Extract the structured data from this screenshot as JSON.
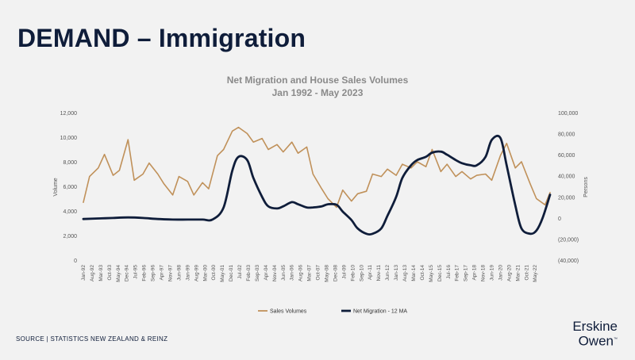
{
  "slide": {
    "title": "DEMAND – Immigration",
    "source": "SOURCE | STATISTICS NEW ZEALAND & REINZ",
    "logo_line1": "Erskine",
    "logo_line2": "Owen",
    "logo_tm": "™"
  },
  "colors": {
    "background": "#f2f2f2",
    "sales": "#c0915a",
    "migration": "#0f1d3a",
    "title": "#0f1d3a",
    "axis_text": "#555555",
    "chart_title": "#8a8a8a"
  },
  "chart_data": {
    "type": "line",
    "title": "Net Migration and House Sales Volumes",
    "subtitle": "Jan 1992 - May 2023",
    "ylabel": "Volume",
    "y2label": "Persons",
    "ylim": [
      0,
      12000
    ],
    "y2lim": [
      -40000,
      100000
    ],
    "yticks": [
      "0",
      "2,000",
      "4,000",
      "6,000",
      "8,000",
      "10,000",
      "12,000"
    ],
    "y2ticks": [
      "(40,000)",
      "(20,000)",
      "0",
      "20,000",
      "40,000",
      "60,000",
      "80,000",
      "100,000"
    ],
    "grid": false,
    "legend_position": "bottom",
    "x_start": "1992-01",
    "x_end": "2023-05",
    "xtick_labels": [
      "Jan-92",
      "Aug-92",
      "Mar-93",
      "Oct-93",
      "May-94",
      "Dec-94",
      "Jul-95",
      "Feb-96",
      "Sep-96",
      "Apr-97",
      "Nov-97",
      "Jun-98",
      "Jan-99",
      "Aug-99",
      "Mar-00",
      "Oct-00",
      "May-01",
      "Dec-01",
      "Jul-02",
      "Feb-03",
      "Sep-03",
      "Apr-04",
      "Nov-04",
      "Jun-05",
      "Jan-06",
      "Aug-06",
      "Mar-07",
      "Oct-07",
      "May-08",
      "Dec-08",
      "Jul-09",
      "Feb-10",
      "Sep-10",
      "Apr-11",
      "Nov-11",
      "Jun-12",
      "Jan-13",
      "Aug-13",
      "Mar-14",
      "Oct-14",
      "May-15",
      "Dec-15",
      "Jul-16",
      "Feb-17",
      "Sep-17",
      "Apr-18",
      "Nov-18",
      "Jun-19",
      "Jan-20",
      "Aug-20",
      "Mar-21",
      "Oct-21",
      "May-22"
    ],
    "series": [
      {
        "name": "Sales Volumes",
        "axis": "left",
        "x": [
          "1992-01",
          "1992-06",
          "1993-01",
          "1993-06",
          "1994-01",
          "1994-06",
          "1995-01",
          "1995-06",
          "1996-01",
          "1996-06",
          "1997-01",
          "1997-06",
          "1998-01",
          "1998-06",
          "1999-01",
          "1999-06",
          "2000-01",
          "2000-06",
          "2001-01",
          "2001-06",
          "2002-01",
          "2002-06",
          "2003-01",
          "2003-06",
          "2004-01",
          "2004-06",
          "2005-01",
          "2005-06",
          "2006-01",
          "2006-06",
          "2007-01",
          "2007-06",
          "2008-01",
          "2008-06",
          "2009-01",
          "2009-06",
          "2010-01",
          "2010-06",
          "2011-01",
          "2011-06",
          "2012-01",
          "2012-06",
          "2013-01",
          "2013-06",
          "2014-01",
          "2014-06",
          "2015-01",
          "2015-06",
          "2016-01",
          "2016-06",
          "2017-01",
          "2017-06",
          "2018-01",
          "2018-06",
          "2019-01",
          "2019-06",
          "2020-01",
          "2020-06",
          "2021-01",
          "2021-06",
          "2022-01",
          "2022-06",
          "2023-01",
          "2023-05"
        ],
        "values": [
          4700,
          6800,
          7500,
          8600,
          6900,
          7300,
          9800,
          6500,
          7000,
          7900,
          7000,
          6200,
          5300,
          6800,
          6400,
          5300,
          6300,
          5800,
          8500,
          9000,
          10500,
          10800,
          10300,
          9600,
          9900,
          9000,
          9400,
          8800,
          9600,
          8700,
          9200,
          7000,
          5800,
          5000,
          4300,
          5700,
          4800,
          5400,
          5600,
          7000,
          6800,
          7400,
          6900,
          7800,
          7500,
          8000,
          7600,
          9000,
          7200,
          7800,
          6800,
          7200,
          6600,
          6900,
          7000,
          6500,
          8500,
          9500,
          7500,
          8000,
          6200,
          5000,
          4500,
          5500
        ]
      },
      {
        "name": "Net Migration - 12 MA",
        "axis": "right",
        "x": [
          "1992-01",
          "1993-01",
          "1994-01",
          "1995-01",
          "1996-01",
          "1997-01",
          "1998-01",
          "1999-01",
          "2000-01",
          "2000-09",
          "2001-06",
          "2002-01",
          "2002-06",
          "2003-01",
          "2003-06",
          "2004-01",
          "2004-06",
          "2005-01",
          "2005-06",
          "2006-01",
          "2006-06",
          "2007-01",
          "2007-06",
          "2008-01",
          "2008-06",
          "2009-01",
          "2009-06",
          "2010-01",
          "2010-06",
          "2011-01",
          "2011-06",
          "2012-01",
          "2012-06",
          "2013-01",
          "2013-06",
          "2014-01",
          "2014-06",
          "2015-01",
          "2015-06",
          "2016-01",
          "2016-06",
          "2017-01",
          "2017-06",
          "2018-01",
          "2018-06",
          "2019-01",
          "2019-06",
          "2020-01",
          "2020-06",
          "2021-01",
          "2021-06",
          "2022-01",
          "2022-06",
          "2022-11",
          "2023-05"
        ],
        "values": [
          -1000,
          -500,
          0,
          500,
          0,
          -1000,
          -1500,
          -1500,
          -1500,
          -1500,
          10000,
          45000,
          58000,
          55000,
          38000,
          20000,
          11000,
          9000,
          11000,
          15000,
          13000,
          10000,
          10000,
          11000,
          13000,
          12500,
          6000,
          -2000,
          -10000,
          -15000,
          -15000,
          -10000,
          2000,
          20000,
          38000,
          50000,
          55000,
          58000,
          62000,
          63000,
          60000,
          55000,
          52000,
          50000,
          50000,
          58000,
          74000,
          76000,
          50000,
          12000,
          -10000,
          -15000,
          -12000,
          0,
          22000
        ]
      }
    ]
  }
}
